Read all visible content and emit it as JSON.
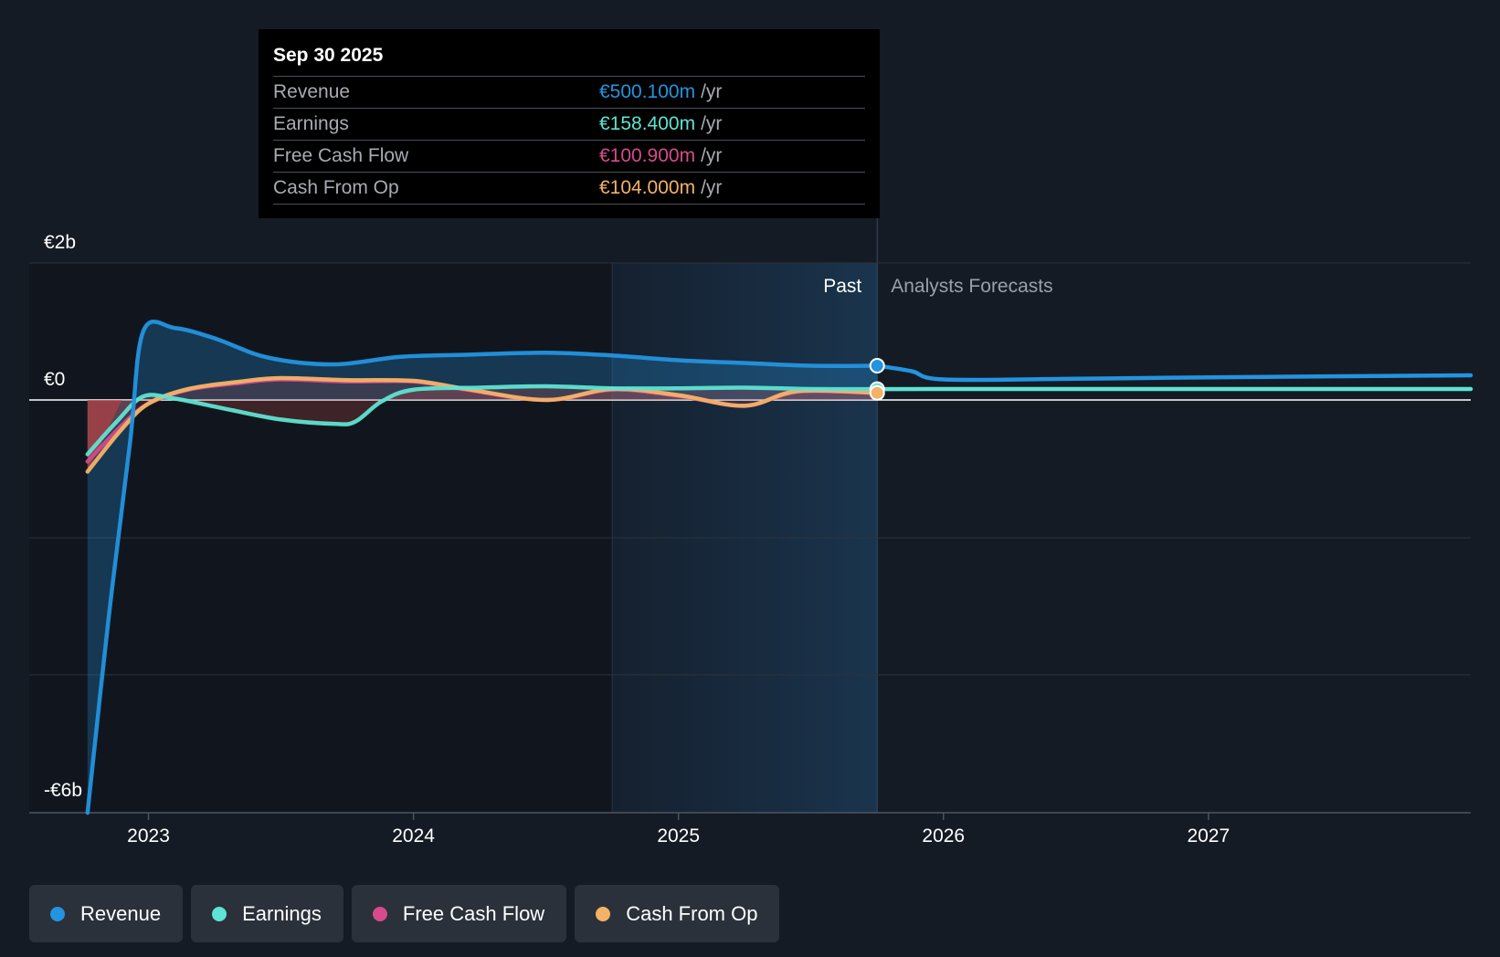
{
  "tooltip": {
    "date": "Sep 30 2025",
    "rows": [
      {
        "label": "Revenue",
        "value": "€500.100m",
        "unit": "/yr",
        "color": "#2394df"
      },
      {
        "label": "Earnings",
        "value": "€158.400m",
        "unit": "/yr",
        "color": "#5fe3d2"
      },
      {
        "label": "Free Cash Flow",
        "value": "€100.900m",
        "unit": "/yr",
        "color": "#d64b8c"
      },
      {
        "label": "Cash From Op",
        "value": "€104.000m",
        "unit": "/yr",
        "color": "#f3b266"
      }
    ]
  },
  "legend": [
    {
      "label": "Revenue",
      "color": "#2394df"
    },
    {
      "label": "Earnings",
      "color": "#5fe3d2"
    },
    {
      "label": "Free Cash Flow",
      "color": "#d64b8c"
    },
    {
      "label": "Cash From Op",
      "color": "#f3b266"
    }
  ],
  "chart_data": {
    "type": "line",
    "y_tick_labels": {
      "top": "€2b",
      "zero": "€0",
      "bottom": "-€6b"
    },
    "ylim": [
      -5.7,
      2.0
    ],
    "xlim": [
      2022.55,
      2027.99
    ],
    "x_ticks": [
      {
        "value": 2023,
        "label": "2023"
      },
      {
        "value": 2024,
        "label": "2024"
      },
      {
        "value": 2025,
        "label": "2025"
      },
      {
        "value": 2026,
        "label": "2026"
      },
      {
        "value": 2027,
        "label": "2027"
      }
    ],
    "past_label": "Past",
    "forecast_label": "Analysts Forecasts",
    "highlight_start": 2024.75,
    "past_end": 2025.75,
    "series": [
      {
        "name": "Revenue",
        "color": "#2394df",
        "points": [
          [
            2022.77,
            -5.7
          ],
          [
            2022.85,
            -3.0
          ],
          [
            2022.93,
            -0.6
          ],
          [
            2022.98,
            1.0
          ],
          [
            2023.1,
            1.05
          ],
          [
            2023.25,
            0.9
          ],
          [
            2023.45,
            0.62
          ],
          [
            2023.7,
            0.52
          ],
          [
            2023.95,
            0.63
          ],
          [
            2024.2,
            0.66
          ],
          [
            2024.5,
            0.69
          ],
          [
            2024.75,
            0.65
          ],
          [
            2025.0,
            0.58
          ],
          [
            2025.25,
            0.54
          ],
          [
            2025.5,
            0.5
          ],
          [
            2025.75,
            0.5
          ],
          [
            2025.88,
            0.42
          ],
          [
            2026.0,
            0.3
          ],
          [
            2026.5,
            0.31
          ],
          [
            2027.0,
            0.33
          ],
          [
            2027.99,
            0.36
          ]
        ]
      },
      {
        "name": "Earnings",
        "color": "#5fe3d2",
        "points": [
          [
            2022.77,
            -0.75
          ],
          [
            2022.88,
            -0.3
          ],
          [
            2022.98,
            0.05
          ],
          [
            2023.1,
            0.02
          ],
          [
            2023.3,
            -0.13
          ],
          [
            2023.5,
            -0.27
          ],
          [
            2023.7,
            -0.33
          ],
          [
            2023.78,
            -0.3
          ],
          [
            2023.88,
            -0.02
          ],
          [
            2024.0,
            0.15
          ],
          [
            2024.25,
            0.18
          ],
          [
            2024.5,
            0.2
          ],
          [
            2024.75,
            0.17
          ],
          [
            2025.0,
            0.17
          ],
          [
            2025.25,
            0.18
          ],
          [
            2025.5,
            0.16
          ],
          [
            2025.75,
            0.158
          ],
          [
            2026.0,
            0.16
          ],
          [
            2027.0,
            0.16
          ],
          [
            2027.99,
            0.16
          ]
        ]
      },
      {
        "name": "Free Cash Flow",
        "color": "#d64b8c",
        "points": [
          [
            2022.77,
            -0.85
          ],
          [
            2022.9,
            -0.35
          ],
          [
            2023.0,
            -0.05
          ],
          [
            2023.15,
            0.15
          ],
          [
            2023.35,
            0.25
          ],
          [
            2023.5,
            0.3
          ],
          [
            2023.75,
            0.27
          ],
          [
            2024.0,
            0.27
          ],
          [
            2024.2,
            0.15
          ],
          [
            2024.5,
            0.0
          ],
          [
            2024.75,
            0.15
          ],
          [
            2025.0,
            0.06
          ],
          [
            2025.25,
            -0.08
          ],
          [
            2025.45,
            0.12
          ],
          [
            2025.75,
            0.101
          ]
        ]
      },
      {
        "name": "Cash From Op",
        "color": "#f3b266",
        "points": [
          [
            2022.77,
            -0.99
          ],
          [
            2022.9,
            -0.4
          ],
          [
            2023.0,
            -0.05
          ],
          [
            2023.15,
            0.16
          ],
          [
            2023.35,
            0.27
          ],
          [
            2023.5,
            0.32
          ],
          [
            2023.75,
            0.29
          ],
          [
            2024.0,
            0.28
          ],
          [
            2024.2,
            0.16
          ],
          [
            2024.5,
            0.0
          ],
          [
            2024.75,
            0.16
          ],
          [
            2025.0,
            0.07
          ],
          [
            2025.25,
            -0.08
          ],
          [
            2025.45,
            0.13
          ],
          [
            2025.75,
            0.104
          ]
        ]
      }
    ]
  }
}
